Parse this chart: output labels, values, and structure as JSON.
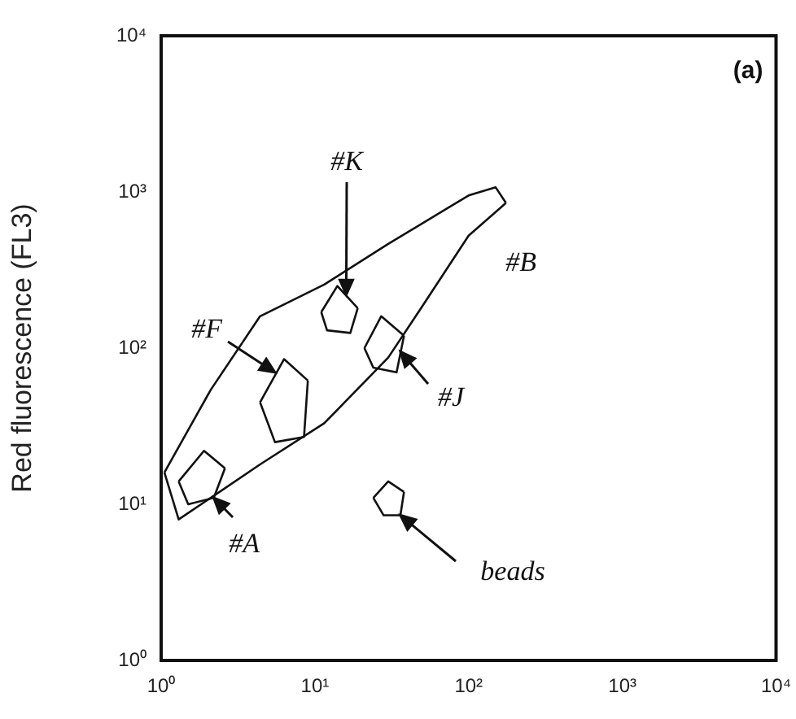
{
  "chart_data": {
    "type": "line",
    "ylabel": "Red fluorescence (FL3)",
    "log": "xy",
    "grid": false,
    "legend": false,
    "marker": "none",
    "line_style": "solid",
    "xlim": [
      1,
      10000
    ],
    "ylim": [
      1,
      10000
    ],
    "xticks": [
      {
        "value": 1,
        "label": "10⁰"
      },
      {
        "value": 10,
        "label": "10¹"
      },
      {
        "value": 100,
        "label": "10²"
      },
      {
        "value": 1000,
        "label": "10³"
      },
      {
        "value": 10000,
        "label": "10⁴"
      }
    ],
    "yticks": [
      {
        "value": 1,
        "label": "10⁰"
      },
      {
        "value": 10,
        "label": "10¹"
      },
      {
        "value": 100,
        "label": "10²"
      },
      {
        "value": 1000,
        "label": "10³"
      },
      {
        "value": 10000,
        "label": "10⁴"
      }
    ],
    "annotations": [
      "(a)",
      {
        "text": "#K",
        "x": 16,
        "y": 220
      },
      "#B",
      {
        "text": "#F",
        "x": 5.5,
        "y": 70
      },
      {
        "text": "#J",
        "x": 36,
        "y": 95
      },
      {
        "text": "#A",
        "x": 2.2,
        "y": 11
      },
      {
        "text": "beads",
        "x": 36,
        "y": 8.5
      }
    ],
    "series": [
      {
        "color": "#111111",
        "x": [
          1.05,
          2.1,
          4.4,
          11.5,
          30,
          100,
          150,
          175
        ],
        "values": [
          16,
          54,
          160,
          255,
          465,
          950,
          1070,
          850
        ]
      },
      {
        "color": "#111111",
        "x": [
          1.05,
          1.3,
          2.1,
          4.4,
          11.5,
          30,
          49,
          100,
          175
        ],
        "values": [
          16,
          8,
          11,
          18,
          33,
          87,
          180,
          525,
          850
        ]
      },
      {
        "color": "#111111",
        "x": [
          4.4,
          6.3,
          9
        ],
        "values": [
          45,
          85,
          62
        ]
      },
      {
        "color": "#111111",
        "x": [
          4.4,
          5.5,
          8.5,
          9
        ],
        "values": [
          45,
          25,
          27,
          62
        ]
      },
      {
        "color": "#111111",
        "x": [
          11,
          14,
          19
        ],
        "values": [
          170,
          250,
          180
        ]
      },
      {
        "color": "#111111",
        "x": [
          11,
          12,
          17,
          19
        ],
        "values": [
          170,
          130,
          125,
          180
        ]
      },
      {
        "color": "#111111",
        "x": [
          21,
          27,
          38
        ],
        "values": [
          100,
          160,
          120
        ]
      },
      {
        "color": "#111111",
        "x": [
          21,
          24,
          34,
          38
        ],
        "values": [
          100,
          75,
          70,
          120
        ]
      },
      {
        "color": "#111111",
        "x": [
          1.3,
          1.9,
          2.6
        ],
        "values": [
          14,
          22,
          17
        ]
      },
      {
        "color": "#111111",
        "x": [
          1.3,
          1.5,
          2.2,
          2.6
        ],
        "values": [
          14,
          10,
          11,
          17
        ]
      },
      {
        "color": "#111111",
        "x": [
          24,
          30,
          38
        ],
        "values": [
          11,
          14,
          12
        ]
      },
      {
        "color": "#111111",
        "x": [
          24,
          28,
          36,
          38
        ],
        "values": [
          11,
          8.5,
          8.5,
          12
        ]
      }
    ]
  }
}
